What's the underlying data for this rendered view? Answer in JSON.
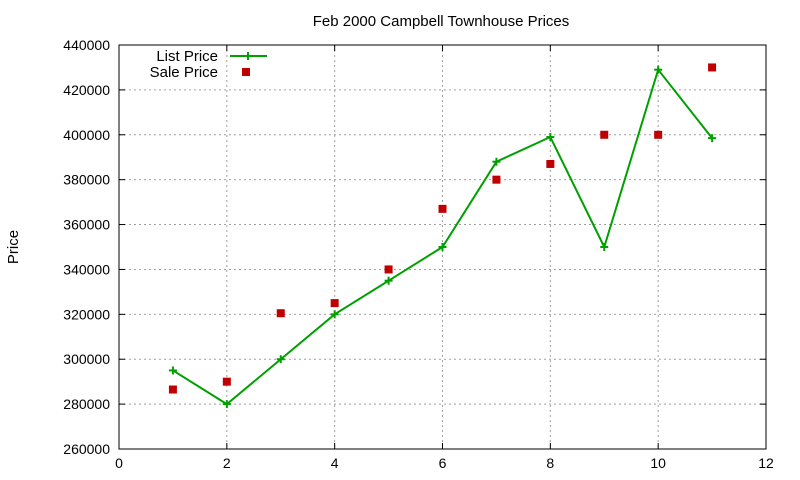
{
  "chart_data": {
    "type": "line",
    "title": "Feb 2000 Campbell Townhouse Prices",
    "xlabel": "",
    "ylabel": "Price",
    "xlim": [
      0,
      12
    ],
    "ylim": [
      260000,
      440000
    ],
    "x_ticks": [
      0,
      2,
      4,
      6,
      8,
      10,
      12
    ],
    "y_ticks": [
      260000,
      280000,
      300000,
      320000,
      340000,
      360000,
      380000,
      400000,
      420000,
      440000
    ],
    "grid": true,
    "legend_position": "top-left",
    "series": [
      {
        "name": "List Price",
        "style": "linespoints",
        "marker": "plus",
        "color": "#00a000",
        "x": [
          1,
          2,
          3,
          4,
          5,
          6,
          7,
          8,
          9,
          10,
          11
        ],
        "y": [
          295000,
          280000,
          300000,
          320000,
          335000,
          350000,
          388000,
          399000,
          350000,
          429000,
          398500
        ]
      },
      {
        "name": "Sale Price",
        "style": "points",
        "marker": "square",
        "color": "#c00000",
        "x": [
          1,
          2,
          3,
          4,
          5,
          6,
          7,
          8,
          9,
          10,
          11
        ],
        "y": [
          286500,
          290000,
          320500,
          325000,
          340000,
          367000,
          380000,
          387000,
          400000,
          400000,
          430000
        ]
      }
    ]
  }
}
